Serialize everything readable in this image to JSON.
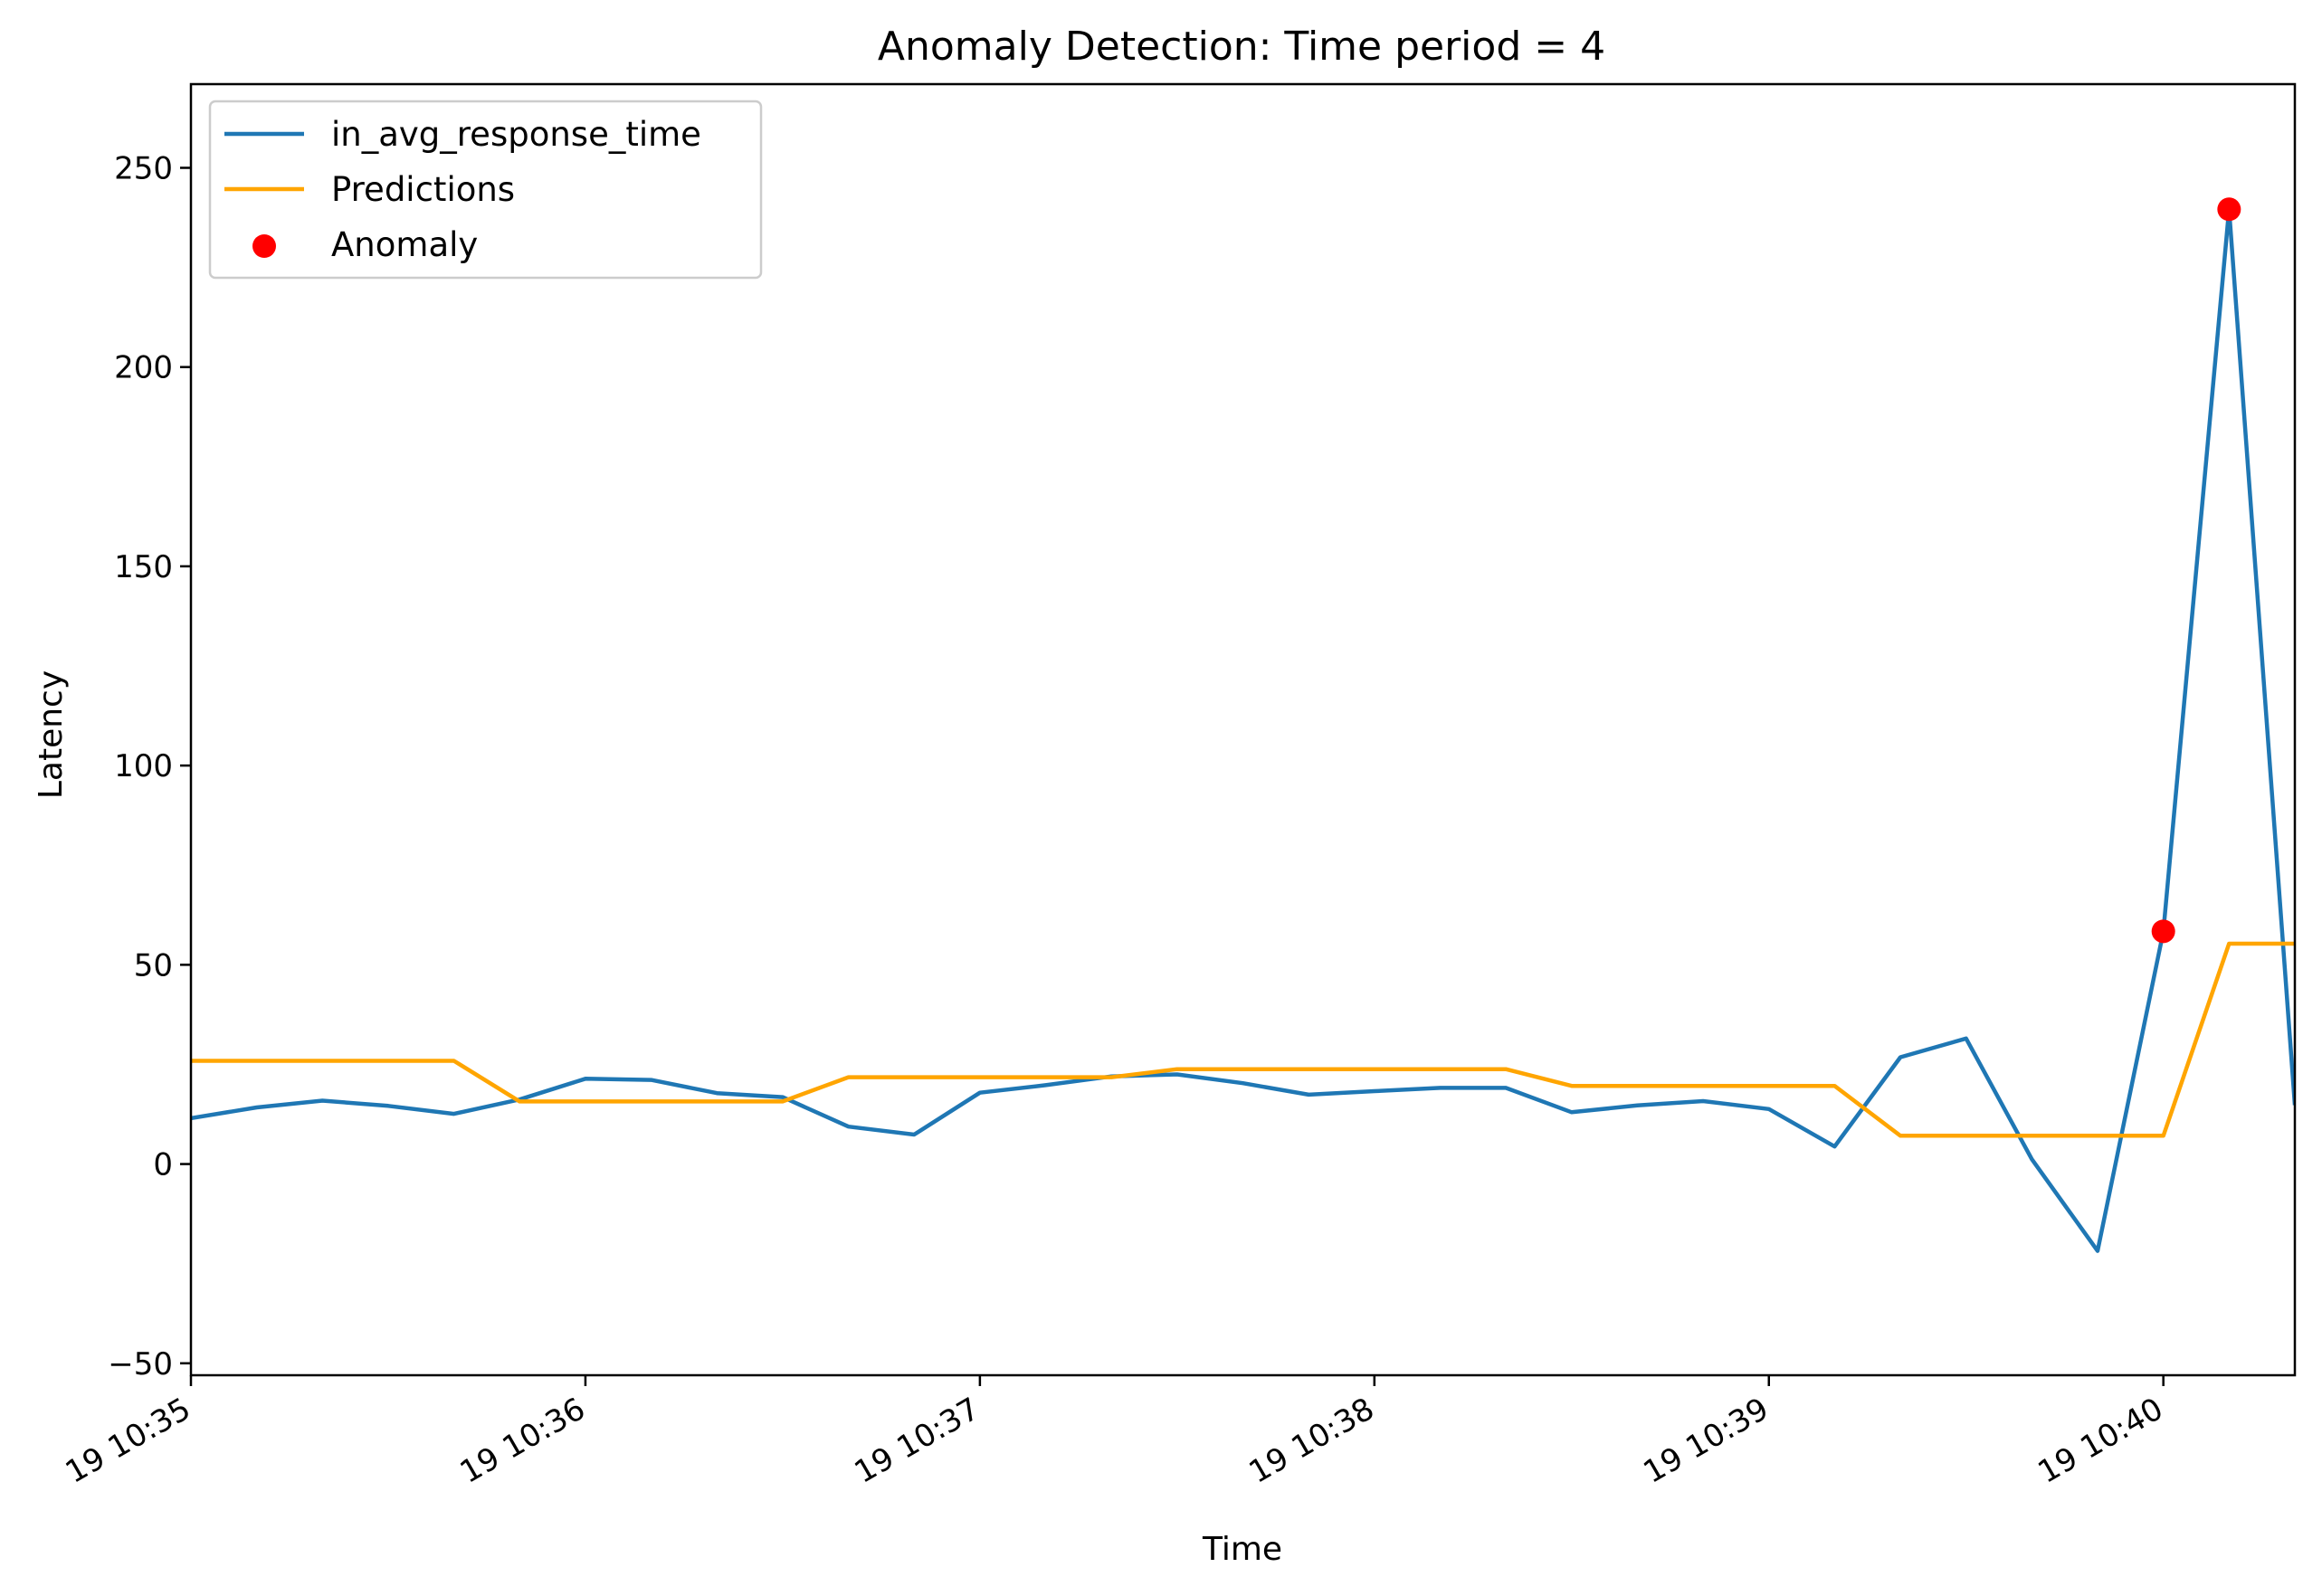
{
  "chart_data": {
    "type": "line",
    "title": "Anomaly Detection: Time period = 4",
    "xlabel": "Time",
    "ylabel": "Latency",
    "x_unit": "time",
    "xlim": [
      "10:35:00",
      "10:40:20"
    ],
    "ylim": [
      -53,
      271
    ],
    "y_ticks": [
      -50,
      0,
      50,
      100,
      150,
      200,
      250
    ],
    "x_ticks": [
      {
        "time": "10:35:00",
        "label": "19 10:35"
      },
      {
        "time": "10:36:00",
        "label": "19 10:36"
      },
      {
        "time": "10:37:00",
        "label": "19 10:37"
      },
      {
        "time": "10:38:00",
        "label": "19 10:38"
      },
      {
        "time": "10:39:00",
        "label": "19 10:39"
      },
      {
        "time": "10:40:00",
        "label": "19 10:40"
      }
    ],
    "legend_position": "upper-left",
    "series": [
      {
        "name": "in_avg_response_time",
        "kind": "line",
        "color": "#1f77b4",
        "points": [
          {
            "x": "10:35:00",
            "y": 11.5
          },
          {
            "x": "10:35:10",
            "y": 14.2
          },
          {
            "x": "10:35:20",
            "y": 15.9
          },
          {
            "x": "10:35:30",
            "y": 14.6
          },
          {
            "x": "10:35:40",
            "y": 12.6
          },
          {
            "x": "10:35:50",
            "y": 16.2
          },
          {
            "x": "10:36:00",
            "y": 21.4
          },
          {
            "x": "10:36:10",
            "y": 21.1
          },
          {
            "x": "10:36:20",
            "y": 17.8
          },
          {
            "x": "10:36:30",
            "y": 16.8
          },
          {
            "x": "10:36:40",
            "y": 9.4
          },
          {
            "x": "10:36:50",
            "y": 7.4
          },
          {
            "x": "10:37:00",
            "y": 17.9
          },
          {
            "x": "10:37:10",
            "y": 19.8
          },
          {
            "x": "10:37:20",
            "y": 22.0
          },
          {
            "x": "10:37:30",
            "y": 22.5
          },
          {
            "x": "10:37:40",
            "y": 20.3
          },
          {
            "x": "10:37:50",
            "y": 17.4
          },
          {
            "x": "10:38:00",
            "y": 18.3
          },
          {
            "x": "10:38:10",
            "y": 19.1
          },
          {
            "x": "10:38:20",
            "y": 19.1
          },
          {
            "x": "10:38:30",
            "y": 13.0
          },
          {
            "x": "10:38:40",
            "y": 14.7
          },
          {
            "x": "10:38:50",
            "y": 15.8
          },
          {
            "x": "10:39:00",
            "y": 13.8
          },
          {
            "x": "10:39:10",
            "y": 4.4
          },
          {
            "x": "10:39:20",
            "y": 26.8
          },
          {
            "x": "10:39:30",
            "y": 31.5
          },
          {
            "x": "10:39:40",
            "y": 1.2
          },
          {
            "x": "10:39:50",
            "y": -21.8
          },
          {
            "x": "10:40:00",
            "y": 58.4
          },
          {
            "x": "10:40:10",
            "y": 239.6
          },
          {
            "x": "10:40:20",
            "y": 14.8
          }
        ]
      },
      {
        "name": "Predictions",
        "kind": "line",
        "color": "#ffa500",
        "points": [
          {
            "x": "10:35:00",
            "y": 25.9
          },
          {
            "x": "10:35:40",
            "y": 25.9
          },
          {
            "x": "10:35:50",
            "y": 15.7
          },
          {
            "x": "10:36:30",
            "y": 15.7
          },
          {
            "x": "10:36:40",
            "y": 21.8
          },
          {
            "x": "10:37:20",
            "y": 21.8
          },
          {
            "x": "10:37:30",
            "y": 23.8
          },
          {
            "x": "10:38:20",
            "y": 23.8
          },
          {
            "x": "10:38:30",
            "y": 19.6
          },
          {
            "x": "10:39:10",
            "y": 19.6
          },
          {
            "x": "10:39:20",
            "y": 7.1
          },
          {
            "x": "10:40:00",
            "y": 7.1
          },
          {
            "x": "10:40:10",
            "y": 55.3
          },
          {
            "x": "10:40:20",
            "y": 55.3
          }
        ]
      },
      {
        "name": "Anomaly",
        "kind": "scatter",
        "color": "#ff0000",
        "points": [
          {
            "x": "10:40:00",
            "y": 58.4
          },
          {
            "x": "10:40:10",
            "y": 239.6
          }
        ]
      }
    ]
  }
}
